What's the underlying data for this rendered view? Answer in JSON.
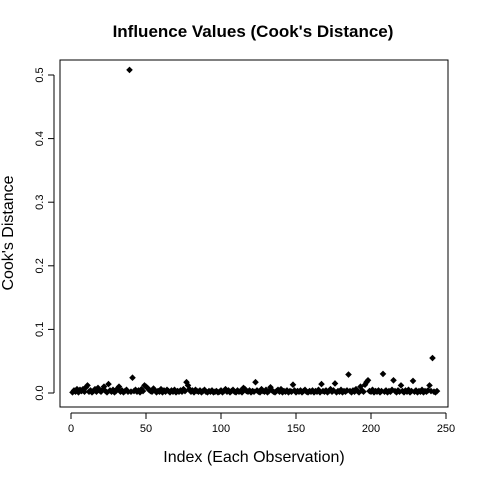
{
  "chart_data": {
    "type": "scatter",
    "title": "Influence Values (Cook's Distance)",
    "xlabel": "Index (Each Observation)",
    "ylabel": "Cook's Distance",
    "xlim": [
      0,
      250
    ],
    "ylim": [
      0,
      0.5
    ],
    "xticks": [
      0,
      50,
      100,
      150,
      200,
      250
    ],
    "yticks": [
      0.0,
      0.1,
      0.2,
      0.3,
      0.4,
      0.5
    ],
    "xtick_labels": [
      "0",
      "50",
      "100",
      "150",
      "200",
      "250"
    ],
    "ytick_labels": [
      "0.0",
      "0.1",
      "0.2",
      "0.3",
      "0.4",
      "0.5"
    ],
    "marker": "filled-diamond",
    "grid": false,
    "points": [
      [
        1,
        0.001
      ],
      [
        2,
        0.004
      ],
      [
        3,
        0.002
      ],
      [
        4,
        0.006
      ],
      [
        5,
        0.001
      ],
      [
        6,
        0.005
      ],
      [
        7,
        0.003
      ],
      [
        8,
        0.006
      ],
      [
        9,
        0.002
      ],
      [
        10,
        0.009
      ],
      [
        11,
        0.012
      ],
      [
        12,
        0.002
      ],
      [
        13,
        0.004
      ],
      [
        14,
        0.001
      ],
      [
        15,
        0.003
      ],
      [
        16,
        0.006
      ],
      [
        17,
        0.002
      ],
      [
        18,
        0.008
      ],
      [
        19,
        0.004
      ],
      [
        20,
        0.002
      ],
      [
        21,
        0.005
      ],
      [
        22,
        0.01
      ],
      [
        23,
        0.003
      ],
      [
        24,
        0.001
      ],
      [
        25,
        0.014
      ],
      [
        26,
        0.004
      ],
      [
        27,
        0.002
      ],
      [
        28,
        0.005
      ],
      [
        29,
        0.001
      ],
      [
        30,
        0.003
      ],
      [
        31,
        0.007
      ],
      [
        32,
        0.01
      ],
      [
        33,
        0.002
      ],
      [
        34,
        0.004
      ],
      [
        35,
        0.001
      ],
      [
        36,
        0.003
      ],
      [
        37,
        0.005
      ],
      [
        38,
        0.002
      ],
      [
        39,
        0.508
      ],
      [
        40,
        0.002
      ],
      [
        41,
        0.024
      ],
      [
        42,
        0.003
      ],
      [
        43,
        0.005
      ],
      [
        44,
        0.002
      ],
      [
        45,
        0.004
      ],
      [
        46,
        0.001
      ],
      [
        47,
        0.006
      ],
      [
        48,
        0.003
      ],
      [
        49,
        0.012
      ],
      [
        50,
        0.01
      ],
      [
        51,
        0.008
      ],
      [
        52,
        0.005
      ],
      [
        53,
        0.003
      ],
      [
        54,
        0.002
      ],
      [
        55,
        0.007
      ],
      [
        56,
        0.004
      ],
      [
        57,
        0.001
      ],
      [
        58,
        0.003
      ],
      [
        59,
        0.002
      ],
      [
        60,
        0.006
      ],
      [
        61,
        0.001
      ],
      [
        62,
        0.004
      ],
      [
        63,
        0.002
      ],
      [
        64,
        0.005
      ],
      [
        65,
        0.003
      ],
      [
        66,
        0.001
      ],
      [
        67,
        0.004
      ],
      [
        68,
        0.002
      ],
      [
        69,
        0.005
      ],
      [
        70,
        0.001
      ],
      [
        71,
        0.003
      ],
      [
        72,
        0.002
      ],
      [
        73,
        0.004
      ],
      [
        74,
        0.002
      ],
      [
        75,
        0.006
      ],
      [
        76,
        0.003
      ],
      [
        77,
        0.017
      ],
      [
        78,
        0.012
      ],
      [
        79,
        0.006
      ],
      [
        80,
        0.002
      ],
      [
        81,
        0.004
      ],
      [
        82,
        0.001
      ],
      [
        83,
        0.005
      ],
      [
        84,
        0.003
      ],
      [
        85,
        0.002
      ],
      [
        86,
        0.004
      ],
      [
        87,
        0.001
      ],
      [
        88,
        0.003
      ],
      [
        89,
        0.005
      ],
      [
        90,
        0.002
      ],
      [
        91,
        0.001
      ],
      [
        92,
        0.003
      ],
      [
        93,
        0.002
      ],
      [
        94,
        0.004
      ],
      [
        95,
        0.001
      ],
      [
        96,
        0.002
      ],
      [
        97,
        0.003
      ],
      [
        98,
        0.001
      ],
      [
        99,
        0.002
      ],
      [
        100,
        0.004
      ],
      [
        101,
        0.001
      ],
      [
        102,
        0.003
      ],
      [
        103,
        0.006
      ],
      [
        104,
        0.002
      ],
      [
        105,
        0.004
      ],
      [
        106,
        0.001
      ],
      [
        107,
        0.003
      ],
      [
        108,
        0.005
      ],
      [
        109,
        0.002
      ],
      [
        110,
        0.001
      ],
      [
        111,
        0.004
      ],
      [
        112,
        0.002
      ],
      [
        113,
        0.003
      ],
      [
        114,
        0.001
      ],
      [
        115,
        0.008
      ],
      [
        116,
        0.006
      ],
      [
        117,
        0.003
      ],
      [
        118,
        0.002
      ],
      [
        119,
        0.004
      ],
      [
        120,
        0.001
      ],
      [
        121,
        0.003
      ],
      [
        122,
        0.002
      ],
      [
        123,
        0.017
      ],
      [
        124,
        0.004
      ],
      [
        125,
        0.002
      ],
      [
        126,
        0.001
      ],
      [
        127,
        0.006
      ],
      [
        128,
        0.003
      ],
      [
        129,
        0.002
      ],
      [
        130,
        0.005
      ],
      [
        131,
        0.001
      ],
      [
        132,
        0.003
      ],
      [
        133,
        0.009
      ],
      [
        134,
        0.004
      ],
      [
        135,
        0.002
      ],
      [
        136,
        0.001
      ],
      [
        137,
        0.003
      ],
      [
        138,
        0.005
      ],
      [
        139,
        0.002
      ],
      [
        140,
        0.006
      ],
      [
        141,
        0.001
      ],
      [
        142,
        0.003
      ],
      [
        143,
        0.002
      ],
      [
        144,
        0.004
      ],
      [
        145,
        0.001
      ],
      [
        146,
        0.003
      ],
      [
        147,
        0.002
      ],
      [
        148,
        0.013
      ],
      [
        149,
        0.004
      ],
      [
        150,
        0.001
      ],
      [
        151,
        0.003
      ],
      [
        152,
        0.002
      ],
      [
        153,
        0.004
      ],
      [
        154,
        0.001
      ],
      [
        155,
        0.003
      ],
      [
        156,
        0.005
      ],
      [
        157,
        0.002
      ],
      [
        158,
        0.001
      ],
      [
        159,
        0.003
      ],
      [
        160,
        0.002
      ],
      [
        161,
        0.004
      ],
      [
        162,
        0.001
      ],
      [
        163,
        0.003
      ],
      [
        164,
        0.002
      ],
      [
        165,
        0.005
      ],
      [
        166,
        0.001
      ],
      [
        167,
        0.014
      ],
      [
        168,
        0.003
      ],
      [
        169,
        0.002
      ],
      [
        170,
        0.004
      ],
      [
        171,
        0.001
      ],
      [
        172,
        0.003
      ],
      [
        173,
        0.006
      ],
      [
        174,
        0.002
      ],
      [
        175,
        0.004
      ],
      [
        176,
        0.015
      ],
      [
        177,
        0.001
      ],
      [
        178,
        0.003
      ],
      [
        179,
        0.002
      ],
      [
        180,
        0.005
      ],
      [
        181,
        0.001
      ],
      [
        182,
        0.003
      ],
      [
        183,
        0.002
      ],
      [
        184,
        0.004
      ],
      [
        185,
        0.029
      ],
      [
        186,
        0.003
      ],
      [
        187,
        0.001
      ],
      [
        188,
        0.004
      ],
      [
        189,
        0.002
      ],
      [
        190,
        0.006
      ],
      [
        191,
        0.003
      ],
      [
        192,
        0.001
      ],
      [
        193,
        0.01
      ],
      [
        194,
        0.004
      ],
      [
        195,
        0.002
      ],
      [
        196,
        0.013
      ],
      [
        197,
        0.017
      ],
      [
        198,
        0.02
      ],
      [
        199,
        0.003
      ],
      [
        200,
        0.002
      ],
      [
        201,
        0.005
      ],
      [
        202,
        0.001
      ],
      [
        203,
        0.003
      ],
      [
        204,
        0.002
      ],
      [
        205,
        0.004
      ],
      [
        206,
        0.001
      ],
      [
        207,
        0.003
      ],
      [
        208,
        0.03
      ],
      [
        209,
        0.002
      ],
      [
        210,
        0.004
      ],
      [
        211,
        0.001
      ],
      [
        212,
        0.003
      ],
      [
        213,
        0.002
      ],
      [
        214,
        0.005
      ],
      [
        215,
        0.02
      ],
      [
        216,
        0.003
      ],
      [
        217,
        0.001
      ],
      [
        218,
        0.004
      ],
      [
        219,
        0.002
      ],
      [
        220,
        0.012
      ],
      [
        221,
        0.003
      ],
      [
        222,
        0.001
      ],
      [
        223,
        0.004
      ],
      [
        224,
        0.002
      ],
      [
        225,
        0.005
      ],
      [
        226,
        0.001
      ],
      [
        227,
        0.003
      ],
      [
        228,
        0.019
      ],
      [
        229,
        0.002
      ],
      [
        230,
        0.004
      ],
      [
        231,
        0.001
      ],
      [
        232,
        0.003
      ],
      [
        233,
        0.002
      ],
      [
        234,
        0.005
      ],
      [
        235,
        0.001
      ],
      [
        236,
        0.003
      ],
      [
        237,
        0.002
      ],
      [
        238,
        0.004
      ],
      [
        239,
        0.012
      ],
      [
        240,
        0.003
      ],
      [
        241,
        0.055
      ],
      [
        242,
        0.002
      ],
      [
        243,
        0.001
      ],
      [
        244,
        0.003
      ]
    ]
  }
}
